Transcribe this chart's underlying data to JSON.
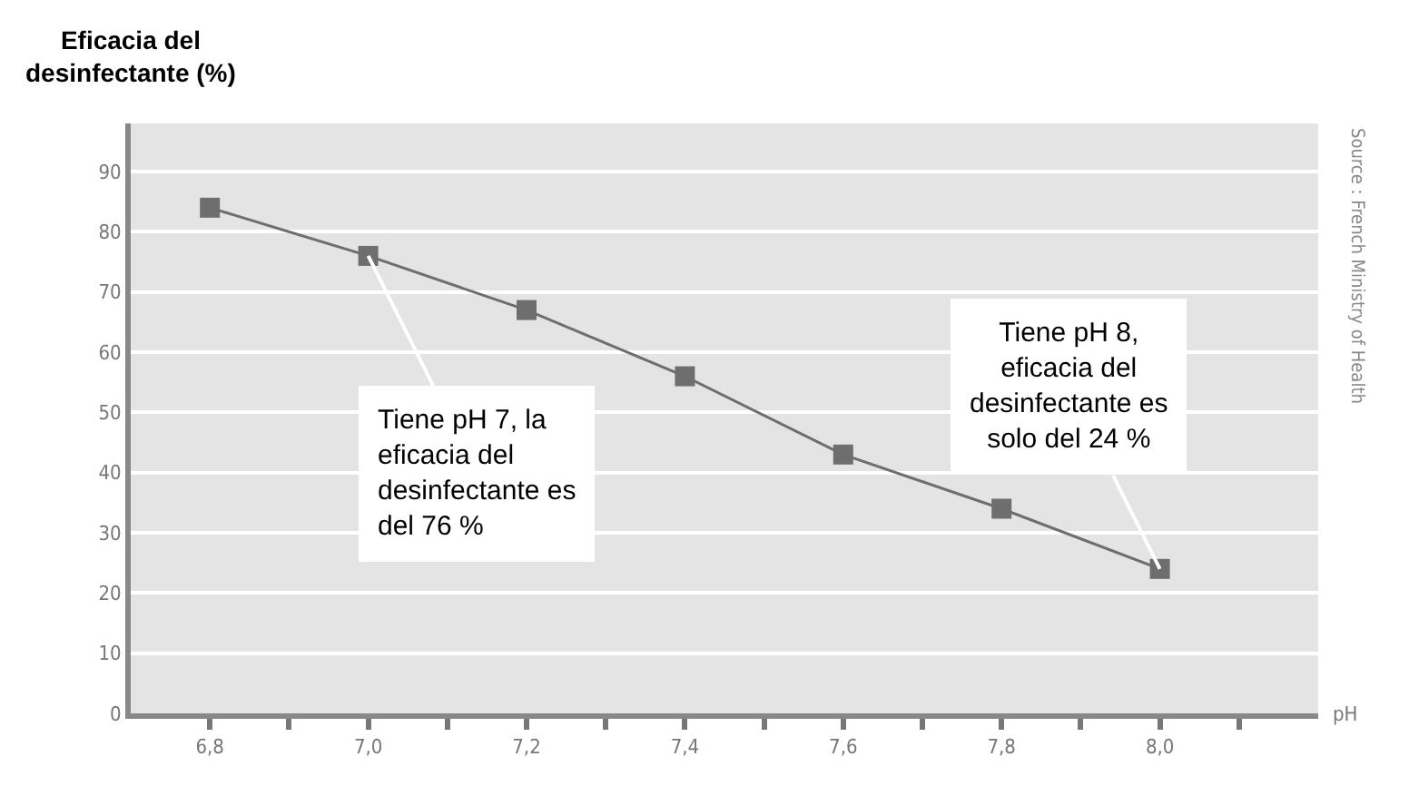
{
  "chart_data": {
    "type": "line",
    "xlabel": "pH",
    "ylabel": "Eficacia del desinfectante (%)",
    "x": [
      6.8,
      7.0,
      7.2,
      7.4,
      7.6,
      7.8,
      8.0
    ],
    "series": [
      {
        "color": "#6e6e6e",
        "values": [
          84,
          76,
          67,
          56,
          43,
          34,
          24
        ]
      }
    ],
    "marker": "square",
    "line_style": "solid",
    "grid": "y",
    "xlim": [
      6.7,
      8.2
    ],
    "ylim": [
      0,
      98
    ],
    "xticks": [
      {
        "value": 6.8,
        "label": "6,8"
      },
      {
        "value": 6.9,
        "label": null
      },
      {
        "value": 7.0,
        "label": "7,0"
      },
      {
        "value": 7.1,
        "label": null
      },
      {
        "value": 7.2,
        "label": "7,2"
      },
      {
        "value": 7.3,
        "label": null
      },
      {
        "value": 7.4,
        "label": "7,4"
      },
      {
        "value": 7.5,
        "label": null
      },
      {
        "value": 7.6,
        "label": "7,6"
      },
      {
        "value": 7.7,
        "label": null
      },
      {
        "value": 7.8,
        "label": "7,8"
      },
      {
        "value": 7.9,
        "label": null
      },
      {
        "value": 8.0,
        "label": "8,0"
      },
      {
        "value": 8.1,
        "label": null
      }
    ],
    "yticks": [
      0,
      10,
      20,
      30,
      40,
      50,
      60,
      70,
      80,
      90
    ],
    "annotations": [
      {
        "text": "Tiene pH 7, la eficacia del desinfectante es del 76 %",
        "x": 7.0,
        "y": 76
      },
      {
        "text": "Tiene pH 8, eficacia del desinfectante es solo del 24 %",
        "x": 8.0,
        "y": 24
      },
      "Source : French Ministry of Health"
    ]
  }
}
